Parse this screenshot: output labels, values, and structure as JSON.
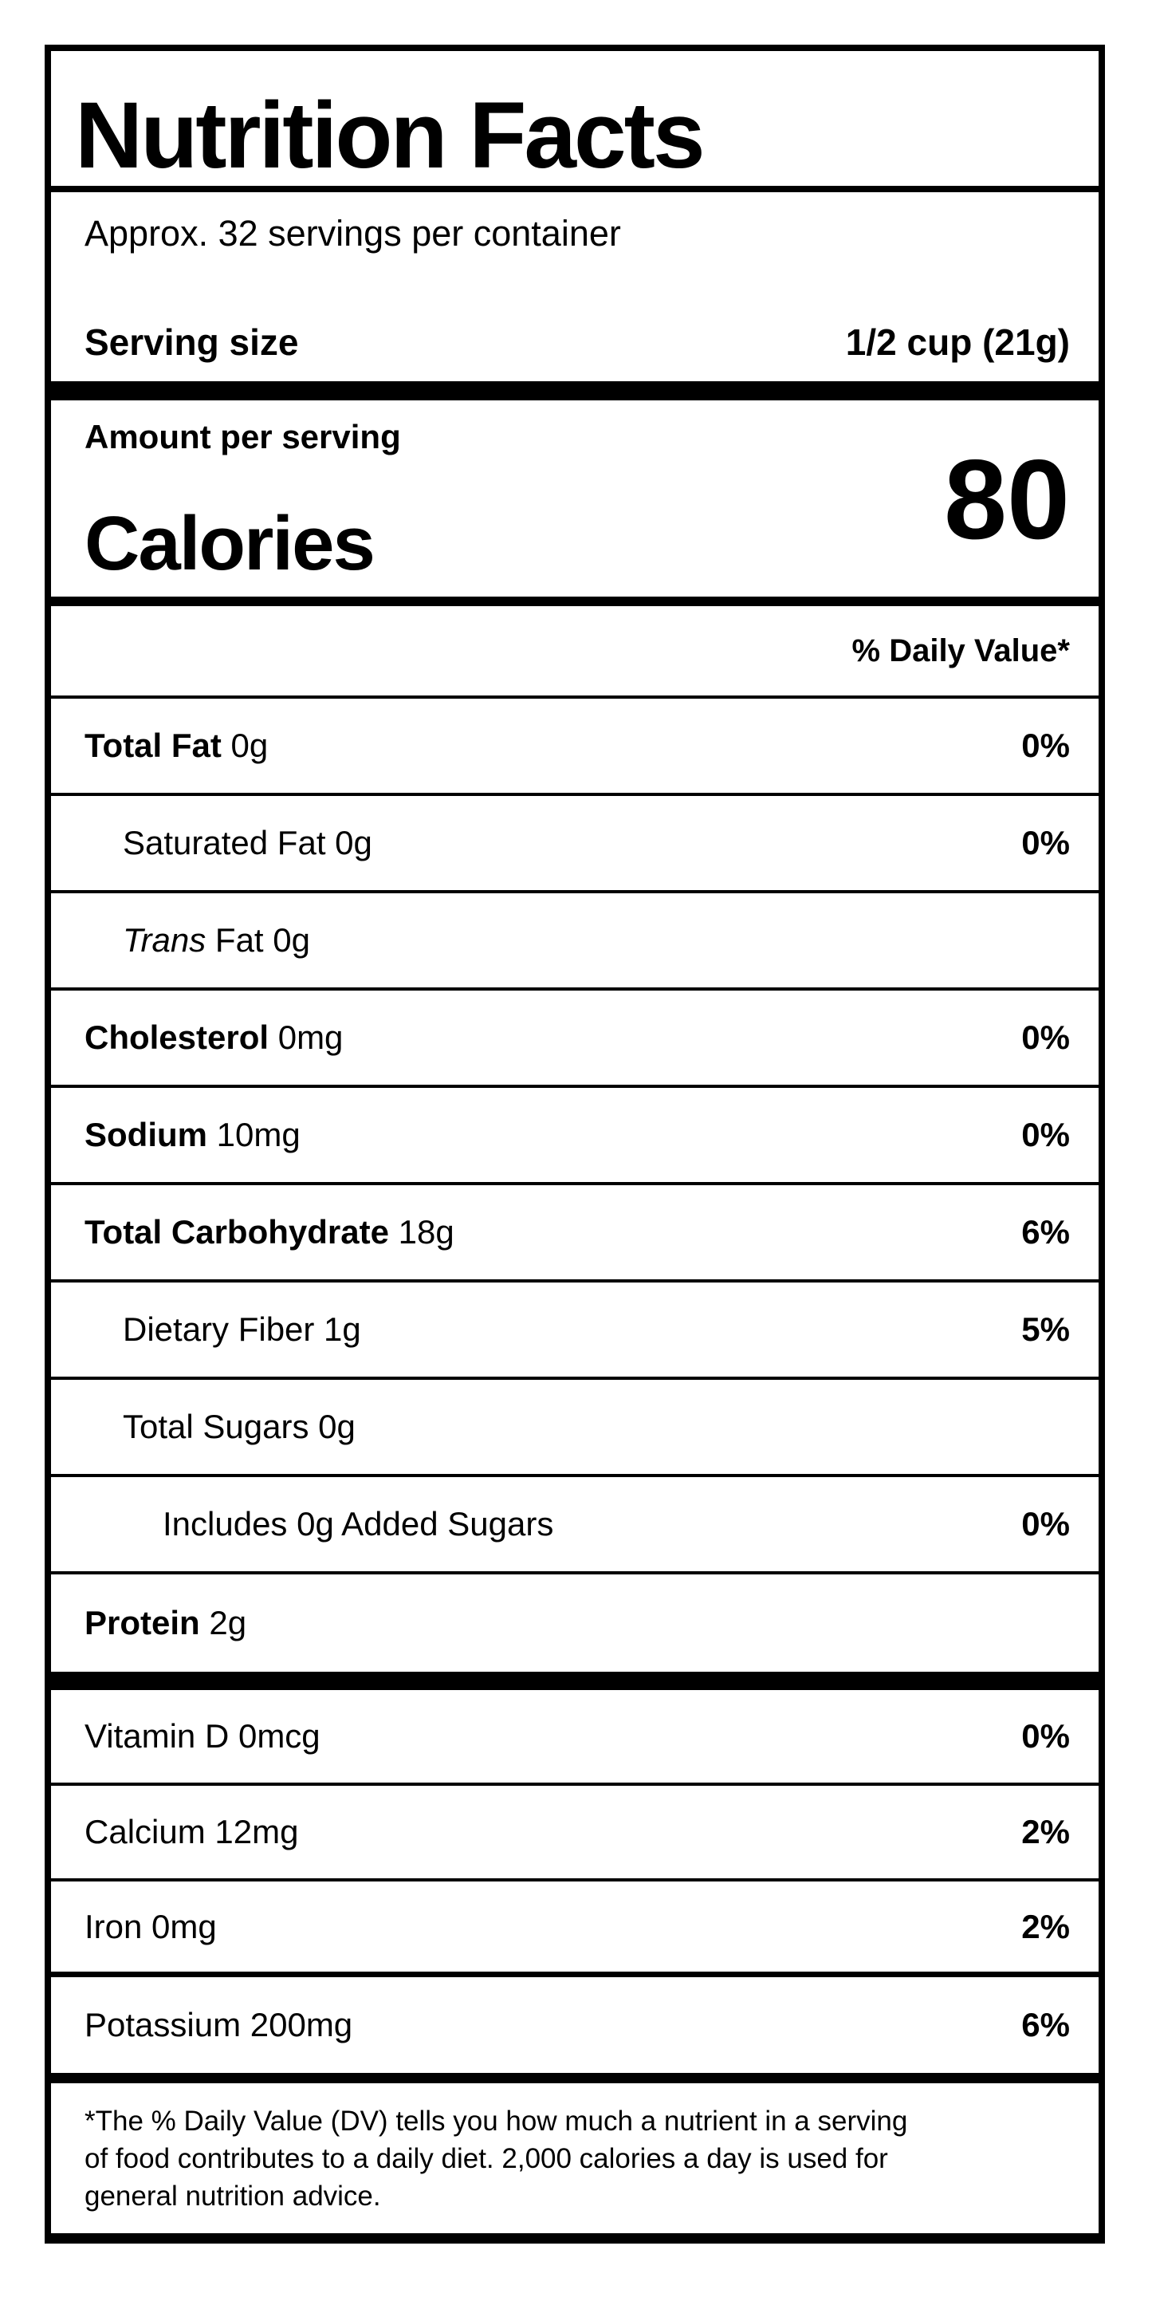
{
  "label": {
    "title": "Nutrition Facts",
    "servings_per_container": "Approx. 32 servings per container",
    "serving_size_label": "Serving size",
    "serving_size_value": "1/2 cup (21g)",
    "amount_per_serving": "Amount per serving",
    "calories_label": "Calories",
    "calories_value": "80",
    "daily_value_header": "% Daily Value*",
    "nutrients": [
      {
        "bold": "Total Fat",
        "text": " 0g",
        "percent": "0%",
        "indent": 0
      },
      {
        "text": "Saturated Fat 0g",
        "percent": "0%",
        "indent": 1
      },
      {
        "italic": "Trans",
        "text": " Fat 0g",
        "percent": "",
        "indent": 1
      },
      {
        "bold": "Cholesterol",
        "text": " 0mg",
        "percent": "0%",
        "indent": 0
      },
      {
        "bold": "Sodium",
        "text": " 10mg",
        "percent": "0%",
        "indent": 0
      },
      {
        "bold": "Total Carbohydrate",
        "text": " 18g",
        "percent": "6%",
        "indent": 0
      },
      {
        "text": "Dietary Fiber 1g",
        "percent": "5%",
        "indent": 1
      },
      {
        "text": "Total Sugars 0g",
        "percent": "",
        "indent": 1
      },
      {
        "text": "Includes 0g Added Sugars",
        "percent": "0%",
        "indent": 2
      },
      {
        "bold": "Protein",
        "text": " 2g",
        "percent": "",
        "indent": 0
      }
    ],
    "micronutrients": [
      {
        "text": "Vitamin D 0mcg",
        "percent": "0%"
      },
      {
        "text": "Calcium 12mg",
        "percent": "2%"
      },
      {
        "text": "Iron 0mg",
        "percent": "2%"
      },
      {
        "text": "Potassium 200mg",
        "percent": "6%"
      }
    ],
    "footnote_lines": [
      "*The % Daily Value (DV) tells you how much a nutrient in a serving",
      "of food contributes to a daily diet. 2,000 calories a day is used for",
      "general nutrition advice."
    ]
  }
}
